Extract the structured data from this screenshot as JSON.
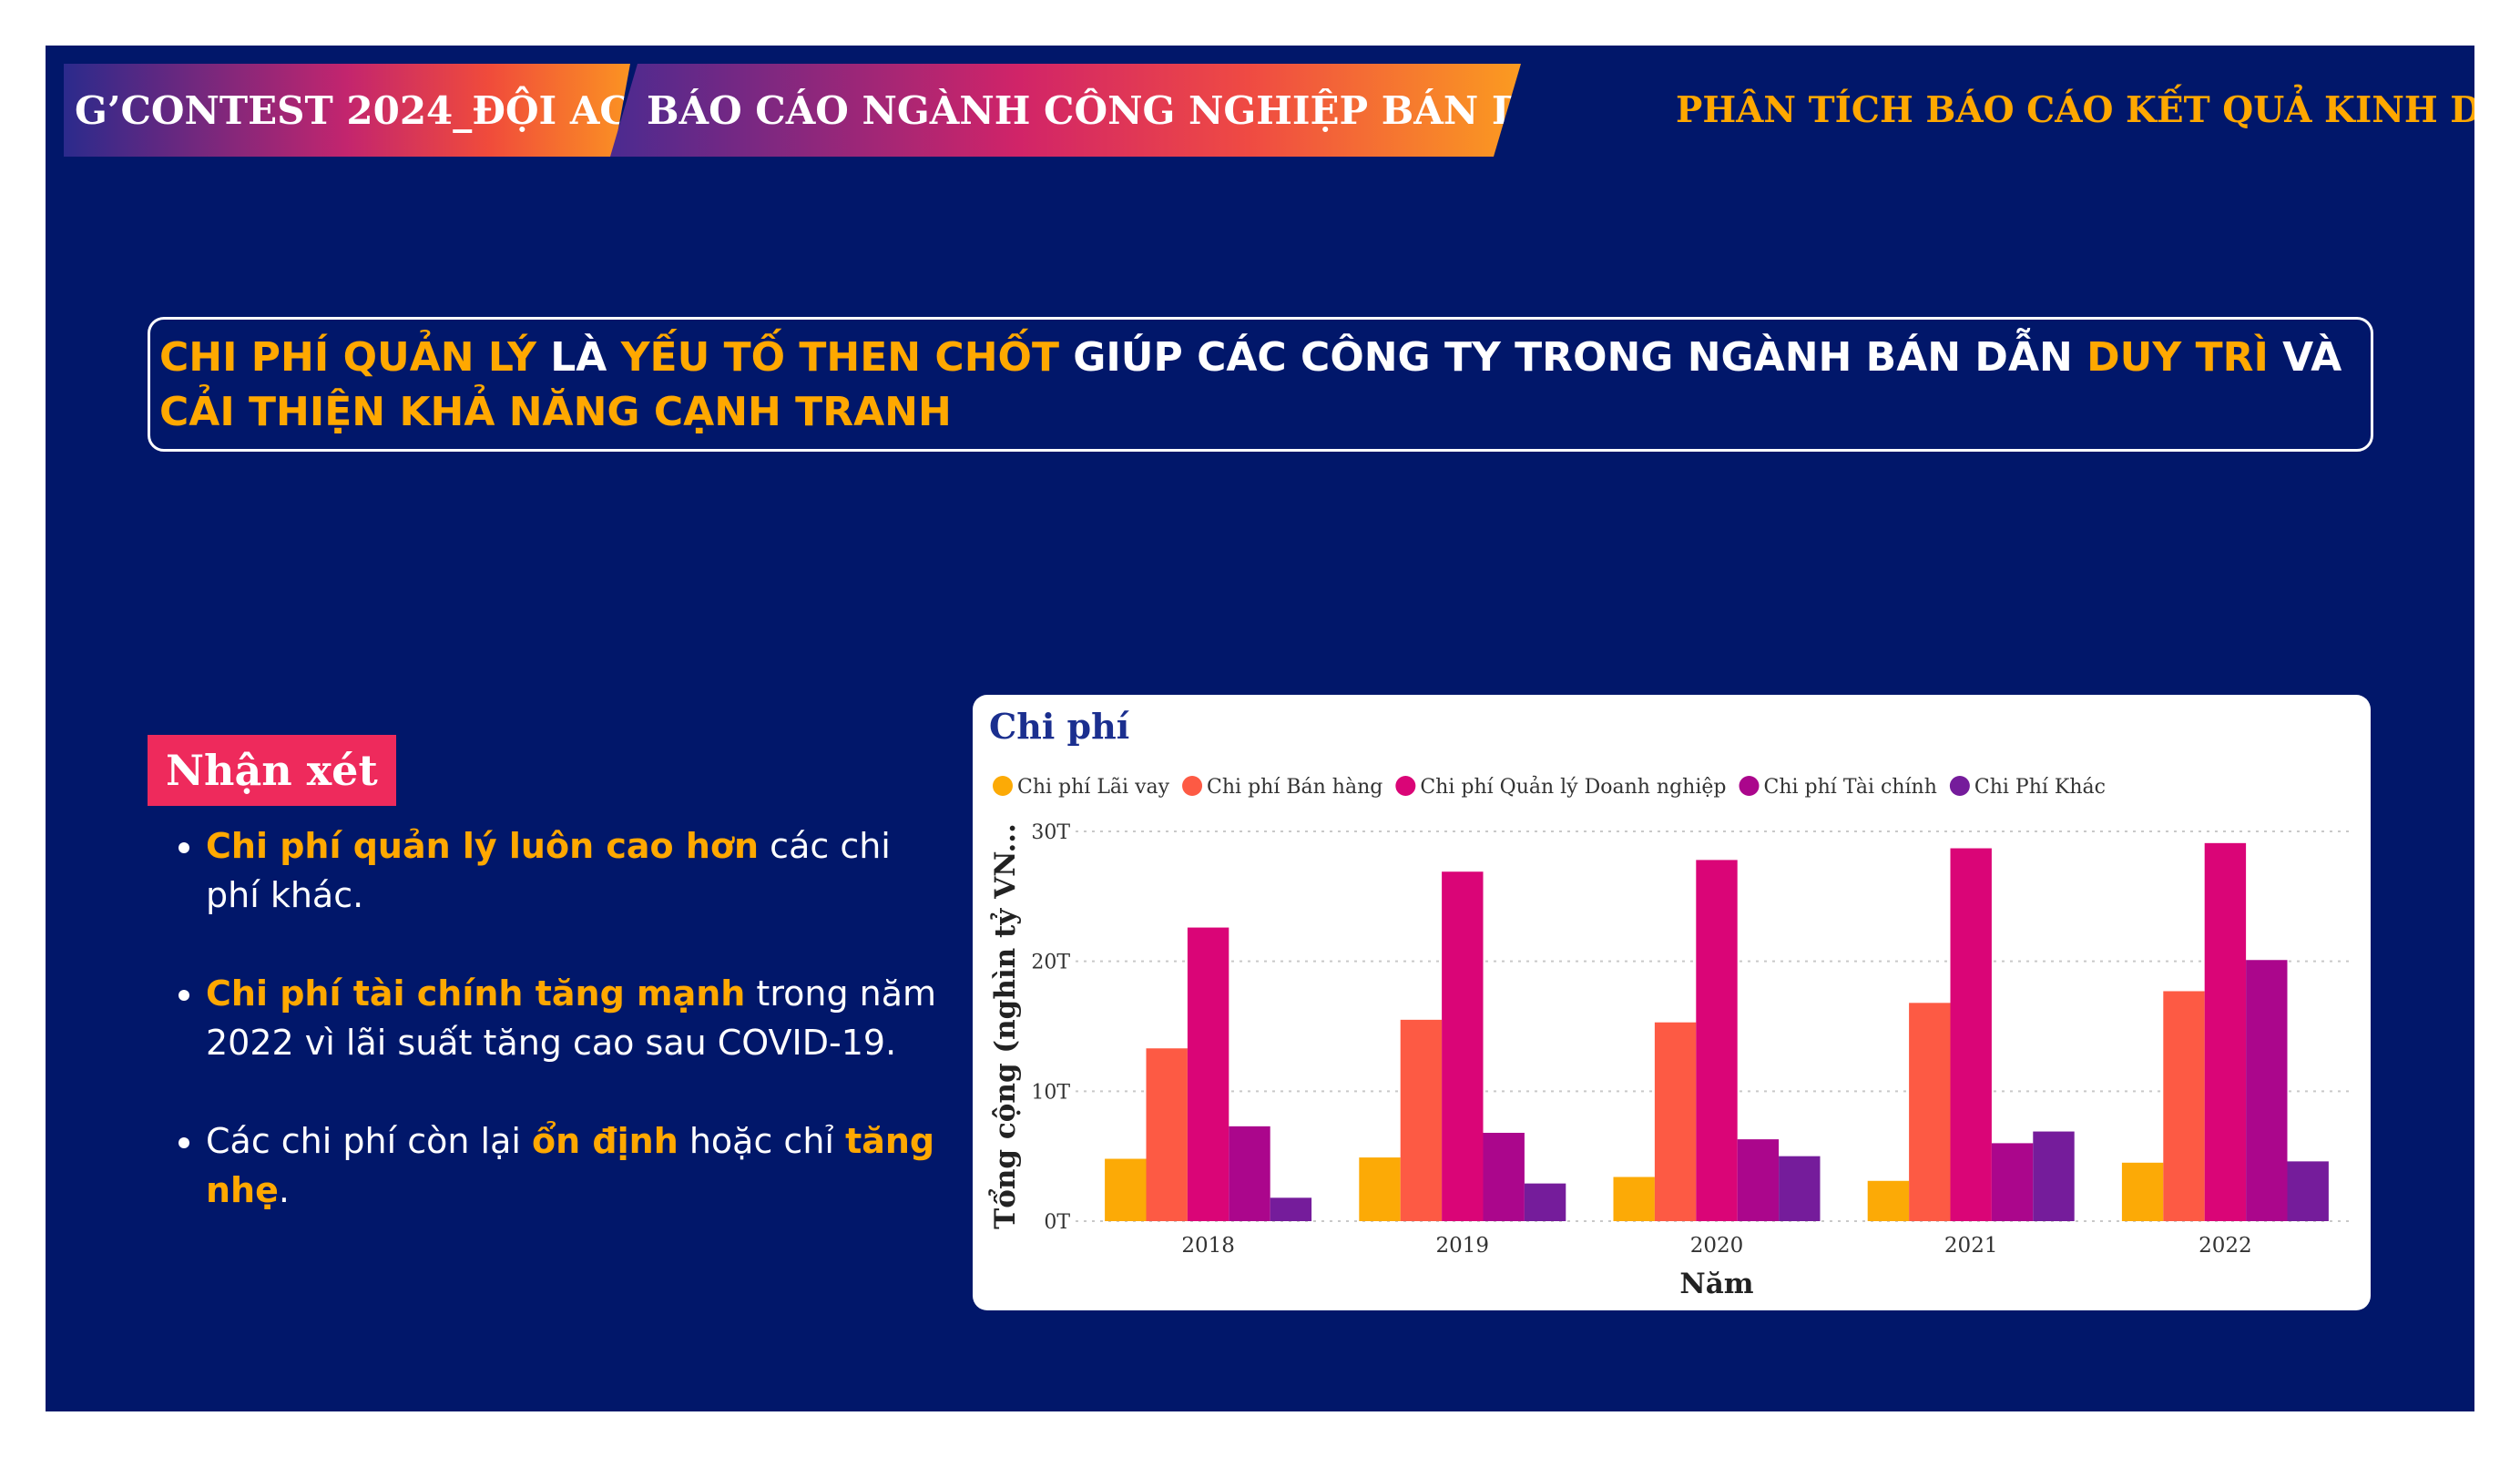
{
  "header": {
    "tab1": "G’CONTEST 2024_ĐỘI AC",
    "tab2": "BÁO CÁO NGÀNH CÔNG NGHIỆP BÁN DẪN",
    "right": "PHÂN TÍCH BÁO CÁO KẾT QUẢ KINH DOANH"
  },
  "headline": {
    "p1": "CHI  PHÍ QUẢN LÝ",
    "p2": " LÀ ",
    "p3": "YẾU TỐ THEN CHỐT",
    "p4": " GIÚP CÁC CÔNG TY TRONG NGÀNH BÁN DẪN ",
    "p5": "DUY TRÌ",
    "p6": " VÀ ",
    "p7": "CẢI THIỆN KHẢ NĂNG CẠNH TRANH"
  },
  "notes": {
    "title": "Nhận xét",
    "items": [
      {
        "bold": "Chi phí quản lý luôn cao hơn",
        "rest": " các chi phí khác."
      },
      {
        "bold": "Chi phí tài chính tăng mạnh",
        "rest": " trong năm 2022 vì lãi suất tăng cao sau COVID-19."
      },
      {
        "pre": "Các chi phí còn lại ",
        "bold": "ổn định",
        "mid": " hoặc chỉ ",
        "bold2": "tăng nhẹ",
        "end": "."
      }
    ]
  },
  "colors": {
    "background": "#01176a",
    "accent": "#ffa800",
    "badge": "#ee2a5c",
    "chart_title": "#1b2f8f"
  },
  "chart_data": {
    "type": "bar",
    "title": "Chi phí",
    "xlabel": "Năm",
    "ylabel": "Tổng cộng (nghìn tỷ VN...",
    "categories": [
      "2018",
      "2019",
      "2020",
      "2021",
      "2022"
    ],
    "ylim": [
      0,
      30
    ],
    "yticks": [
      {
        "value": 0,
        "label": "0T"
      },
      {
        "value": 10,
        "label": "10T"
      },
      {
        "value": 20,
        "label": "20T"
      },
      {
        "value": 30,
        "label": "30T"
      }
    ],
    "grid": true,
    "legend_position": "top-left",
    "series": [
      {
        "name": "Chi phí Lãi vay",
        "color": "#fcaa06",
        "values": [
          4.8,
          4.9,
          3.4,
          3.1,
          4.5
        ]
      },
      {
        "name": "Chi phí Bán hàng",
        "color": "#fd5a44",
        "values": [
          13.3,
          15.5,
          15.3,
          16.8,
          17.7
        ]
      },
      {
        "name": "Chi phí Quản lý Doanh nghiệp",
        "color": "#da0577",
        "values": [
          22.6,
          26.9,
          27.8,
          28.7,
          29.1
        ]
      },
      {
        "name": "Chi phí Tài chính",
        "color": "#ab068c",
        "values": [
          7.3,
          6.8,
          6.3,
          6.0,
          20.1
        ]
      },
      {
        "name": "Chi Phí Khác",
        "color": "#751c9b",
        "values": [
          1.8,
          2.9,
          5.0,
          6.9,
          4.6
        ]
      }
    ]
  }
}
